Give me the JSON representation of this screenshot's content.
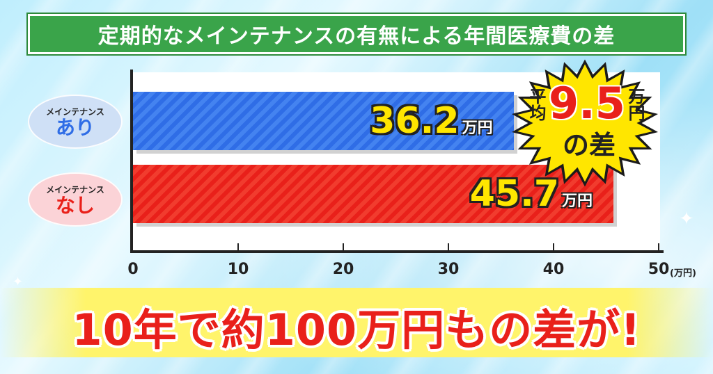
{
  "title": "定期的なメインテナンスの有無による年間医療費の差",
  "chart_data": {
    "type": "bar",
    "orientation": "horizontal",
    "categories": [
      {
        "top": "メインテナンス",
        "main": "あり"
      },
      {
        "top": "メインテナンス",
        "main": "なし"
      }
    ],
    "values": [
      36.2,
      45.7
    ],
    "value_unit": "万円",
    "xlim": [
      0,
      50
    ],
    "ticks": [
      "0",
      "10",
      "20",
      "30",
      "40",
      "50"
    ],
    "tick_values": [
      0,
      10,
      20,
      30,
      40,
      50
    ],
    "axis_unit": "(万円)",
    "bar_colors": [
      "#2f6de6",
      "#e9201a"
    ]
  },
  "callout": {
    "prefix": "平均",
    "number": "9.5",
    "unit": "万円",
    "suffix": "の差"
  },
  "headline": "10年で約100万円もの差が!",
  "colors": {
    "title_bg": "#3aa44a",
    "accent_yellow": "#ffe600",
    "accent_red": "#e9201a",
    "accent_blue": "#2f6de6"
  }
}
